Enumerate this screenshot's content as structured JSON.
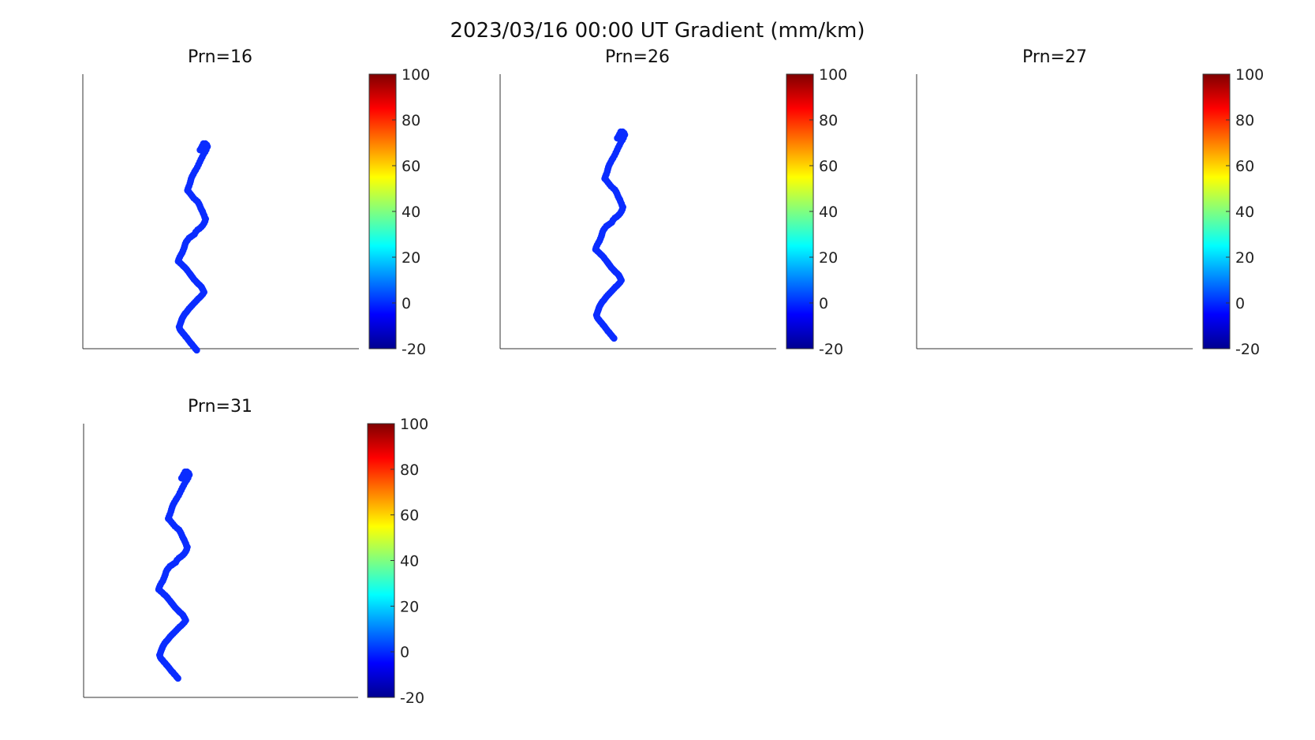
{
  "figure": {
    "title": "2023/03/16 00:00 UT Gradient (mm/km)"
  },
  "colorbar": {
    "colormap": "jet",
    "range": [
      -20,
      100
    ],
    "ticks": [
      "100",
      "80",
      "60",
      "40",
      "20",
      "0",
      "-20"
    ]
  },
  "marker_color": "#0a2cff",
  "chart_data": [
    {
      "type": "scatter",
      "title": "Prn=16",
      "points": [
        [
          291,
          175
        ],
        [
          287,
          167
        ],
        [
          283,
          174
        ],
        [
          280,
          180
        ],
        [
          276,
          186
        ],
        [
          293,
          167
        ],
        [
          298,
          171
        ],
        [
          300,
          176
        ],
        [
          296,
          185
        ],
        [
          292,
          192
        ],
        [
          287,
          199
        ],
        [
          283,
          207
        ],
        [
          279,
          214
        ],
        [
          275,
          222
        ],
        [
          271,
          230
        ],
        [
          267,
          238
        ],
        [
          262,
          246
        ],
        [
          258,
          252
        ],
        [
          254,
          259
        ],
        [
          250,
          266
        ],
        [
          247,
          273
        ],
        [
          245,
          280
        ],
        [
          243,
          287
        ],
        [
          240,
          295
        ],
        [
          237,
          302
        ],
        [
          235,
          308
        ],
        [
          240,
          313
        ],
        [
          245,
          319
        ],
        [
          250,
          325
        ],
        [
          255,
          331
        ],
        [
          262,
          337
        ],
        [
          268,
          342
        ],
        [
          272,
          348
        ],
        [
          275,
          354
        ],
        [
          278,
          361
        ],
        [
          281,
          367
        ],
        [
          284,
          372
        ],
        [
          286,
          377
        ],
        [
          289,
          383
        ],
        [
          291,
          389
        ],
        [
          294,
          394
        ],
        [
          292,
          401
        ],
        [
          289,
          407
        ],
        [
          285,
          413
        ],
        [
          280,
          418
        ],
        [
          274,
          423
        ],
        [
          268,
          427
        ],
        [
          262,
          433
        ],
        [
          258,
          440
        ],
        [
          252,
          444
        ],
        [
          246,
          448
        ],
        [
          240,
          452
        ],
        [
          235,
          458
        ],
        [
          231,
          463
        ],
        [
          228,
          469
        ],
        [
          226,
          476
        ],
        [
          224,
          482
        ],
        [
          221,
          489
        ],
        [
          218,
          496
        ],
        [
          214,
          502
        ],
        [
          210,
          509
        ],
        [
          207,
          516
        ],
        [
          205,
          522
        ],
        [
          211,
          527
        ],
        [
          216,
          531
        ],
        [
          221,
          536
        ],
        [
          226,
          540
        ],
        [
          231,
          545
        ],
        [
          235,
          550
        ],
        [
          240,
          556
        ],
        [
          244,
          561
        ],
        [
          248,
          566
        ],
        [
          252,
          571
        ],
        [
          256,
          576
        ],
        [
          261,
          581
        ],
        [
          266,
          586
        ],
        [
          270,
          590
        ],
        [
          275,
          594
        ],
        [
          280,
          599
        ],
        [
          283,
          604
        ],
        [
          286,
          609
        ],
        [
          289,
          615
        ],
        [
          285,
          621
        ],
        [
          280,
          626
        ],
        [
          275,
          631
        ],
        [
          270,
          635
        ],
        [
          265,
          640
        ],
        [
          260,
          645
        ],
        [
          255,
          650
        ],
        [
          250,
          655
        ],
        [
          245,
          660
        ],
        [
          240,
          665
        ],
        [
          236,
          670
        ],
        [
          232,
          675
        ],
        [
          228,
          679
        ],
        [
          224,
          684
        ],
        [
          221,
          689
        ],
        [
          218,
          694
        ],
        [
          216,
          699
        ],
        [
          214,
          704
        ],
        [
          212,
          709
        ],
        [
          210,
          715
        ],
        [
          208,
          720
        ],
        [
          210,
          726
        ],
        [
          213,
          731
        ],
        [
          217,
          735
        ],
        [
          221,
          740
        ],
        [
          225,
          744
        ],
        [
          229,
          749
        ],
        [
          233,
          753
        ],
        [
          237,
          758
        ],
        [
          241,
          763
        ],
        [
          245,
          768
        ],
        [
          249,
          772
        ],
        [
          253,
          777
        ],
        [
          257,
          781
        ],
        [
          261,
          786
        ],
        [
          265,
          790
        ]
      ],
      "value_all": 0
    },
    {
      "type": "scatter",
      "title": "Prn=26",
      "points": [
        [
          291,
          175
        ],
        [
          287,
          167
        ],
        [
          283,
          174
        ],
        [
          280,
          180
        ],
        [
          276,
          186
        ],
        [
          293,
          167
        ],
        [
          298,
          171
        ],
        [
          300,
          176
        ],
        [
          296,
          185
        ],
        [
          292,
          192
        ],
        [
          287,
          199
        ],
        [
          283,
          207
        ],
        [
          279,
          214
        ],
        [
          275,
          222
        ],
        [
          271,
          230
        ],
        [
          267,
          238
        ],
        [
          262,
          246
        ],
        [
          258,
          252
        ],
        [
          254,
          259
        ],
        [
          250,
          266
        ],
        [
          247,
          273
        ],
        [
          245,
          280
        ],
        [
          243,
          287
        ],
        [
          240,
          295
        ],
        [
          237,
          302
        ],
        [
          235,
          308
        ],
        [
          240,
          313
        ],
        [
          245,
          319
        ],
        [
          250,
          325
        ],
        [
          255,
          331
        ],
        [
          262,
          337
        ],
        [
          268,
          342
        ],
        [
          272,
          348
        ],
        [
          275,
          354
        ],
        [
          278,
          361
        ],
        [
          281,
          367
        ],
        [
          284,
          372
        ],
        [
          286,
          377
        ],
        [
          289,
          383
        ],
        [
          291,
          389
        ],
        [
          294,
          394
        ],
        [
          292,
          401
        ],
        [
          289,
          407
        ],
        [
          285,
          413
        ],
        [
          280,
          418
        ],
        [
          274,
          423
        ],
        [
          268,
          427
        ],
        [
          262,
          433
        ],
        [
          258,
          440
        ],
        [
          252,
          444
        ],
        [
          246,
          448
        ],
        [
          240,
          452
        ],
        [
          235,
          458
        ],
        [
          231,
          463
        ],
        [
          228,
          469
        ],
        [
          226,
          476
        ],
        [
          224,
          482
        ],
        [
          221,
          489
        ],
        [
          218,
          496
        ],
        [
          214,
          502
        ],
        [
          210,
          509
        ],
        [
          207,
          516
        ],
        [
          205,
          522
        ],
        [
          211,
          527
        ],
        [
          216,
          531
        ],
        [
          221,
          536
        ],
        [
          226,
          540
        ],
        [
          231,
          545
        ],
        [
          235,
          550
        ],
        [
          240,
          556
        ],
        [
          244,
          561
        ],
        [
          248,
          566
        ],
        [
          252,
          571
        ],
        [
          256,
          576
        ],
        [
          261,
          581
        ],
        [
          266,
          586
        ],
        [
          270,
          590
        ],
        [
          275,
          594
        ],
        [
          280,
          599
        ],
        [
          283,
          604
        ],
        [
          286,
          609
        ],
        [
          289,
          615
        ],
        [
          285,
          621
        ],
        [
          280,
          626
        ],
        [
          275,
          631
        ],
        [
          270,
          635
        ],
        [
          265,
          640
        ],
        [
          260,
          645
        ],
        [
          255,
          650
        ],
        [
          250,
          655
        ],
        [
          245,
          660
        ],
        [
          240,
          665
        ],
        [
          236,
          670
        ],
        [
          232,
          675
        ],
        [
          228,
          679
        ],
        [
          224,
          684
        ],
        [
          221,
          689
        ],
        [
          218,
          694
        ],
        [
          216,
          699
        ],
        [
          214,
          704
        ],
        [
          212,
          709
        ],
        [
          210,
          715
        ],
        [
          208,
          720
        ],
        [
          210,
          726
        ],
        [
          213,
          731
        ],
        [
          217,
          735
        ],
        [
          221,
          740
        ],
        [
          225,
          744
        ],
        [
          229,
          749
        ],
        [
          233,
          753
        ],
        [
          237,
          758
        ],
        [
          241,
          763
        ],
        [
          245,
          768
        ],
        [
          249,
          772
        ],
        [
          253,
          777
        ],
        [
          257,
          781
        ],
        [
          261,
          786
        ],
        [
          265,
          790
        ]
      ],
      "value_all": 0
    },
    {
      "type": "scatter",
      "title": "Prn=27",
      "points": [],
      "value_all": 0
    },
    {
      "type": "scatter",
      "title": "Prn=31",
      "points": [
        [
          291,
          175
        ],
        [
          287,
          167
        ],
        [
          283,
          174
        ],
        [
          280,
          180
        ],
        [
          276,
          186
        ],
        [
          293,
          167
        ],
        [
          298,
          171
        ],
        [
          300,
          176
        ],
        [
          296,
          185
        ],
        [
          292,
          192
        ],
        [
          287,
          199
        ],
        [
          283,
          207
        ],
        [
          279,
          214
        ],
        [
          275,
          222
        ],
        [
          271,
          230
        ],
        [
          267,
          238
        ],
        [
          262,
          246
        ],
        [
          258,
          252
        ],
        [
          254,
          259
        ],
        [
          250,
          266
        ],
        [
          247,
          273
        ],
        [
          245,
          280
        ],
        [
          243,
          287
        ],
        [
          240,
          295
        ],
        [
          237,
          302
        ],
        [
          235,
          308
        ],
        [
          240,
          313
        ],
        [
          245,
          319
        ],
        [
          250,
          325
        ],
        [
          255,
          331
        ],
        [
          262,
          337
        ],
        [
          268,
          342
        ],
        [
          272,
          348
        ],
        [
          275,
          354
        ],
        [
          278,
          361
        ],
        [
          281,
          367
        ],
        [
          284,
          372
        ],
        [
          286,
          377
        ],
        [
          289,
          383
        ],
        [
          291,
          389
        ],
        [
          294,
          394
        ],
        [
          292,
          401
        ],
        [
          289,
          407
        ],
        [
          285,
          413
        ],
        [
          280,
          418
        ],
        [
          274,
          423
        ],
        [
          268,
          427
        ],
        [
          262,
          433
        ],
        [
          258,
          440
        ],
        [
          252,
          444
        ],
        [
          246,
          448
        ],
        [
          240,
          452
        ],
        [
          235,
          458
        ],
        [
          231,
          463
        ],
        [
          228,
          469
        ],
        [
          226,
          476
        ],
        [
          224,
          482
        ],
        [
          221,
          489
        ],
        [
          218,
          496
        ],
        [
          214,
          502
        ],
        [
          210,
          509
        ],
        [
          207,
          516
        ],
        [
          205,
          522
        ],
        [
          211,
          527
        ],
        [
          216,
          531
        ],
        [
          221,
          536
        ],
        [
          226,
          540
        ],
        [
          231,
          545
        ],
        [
          235,
          550
        ],
        [
          240,
          556
        ],
        [
          244,
          561
        ],
        [
          248,
          566
        ],
        [
          252,
          571
        ],
        [
          256,
          576
        ],
        [
          261,
          581
        ],
        [
          266,
          586
        ],
        [
          270,
          590
        ],
        [
          275,
          594
        ],
        [
          280,
          599
        ],
        [
          283,
          604
        ],
        [
          286,
          609
        ],
        [
          289,
          615
        ],
        [
          285,
          621
        ],
        [
          280,
          626
        ],
        [
          275,
          631
        ],
        [
          270,
          635
        ],
        [
          265,
          640
        ],
        [
          260,
          645
        ],
        [
          255,
          650
        ],
        [
          250,
          655
        ],
        [
          245,
          660
        ],
        [
          240,
          665
        ],
        [
          236,
          670
        ],
        [
          232,
          675
        ],
        [
          228,
          679
        ],
        [
          224,
          684
        ],
        [
          221,
          689
        ],
        [
          218,
          694
        ],
        [
          216,
          699
        ],
        [
          214,
          704
        ],
        [
          212,
          709
        ],
        [
          210,
          715
        ],
        [
          208,
          720
        ],
        [
          210,
          726
        ],
        [
          213,
          731
        ],
        [
          217,
          735
        ],
        [
          221,
          740
        ],
        [
          225,
          744
        ],
        [
          229,
          749
        ],
        [
          233,
          753
        ],
        [
          237,
          758
        ],
        [
          241,
          763
        ],
        [
          245,
          768
        ],
        [
          249,
          772
        ],
        [
          253,
          777
        ],
        [
          257,
          781
        ],
        [
          261,
          786
        ],
        [
          265,
          790
        ]
      ],
      "value_all": 0
    }
  ]
}
